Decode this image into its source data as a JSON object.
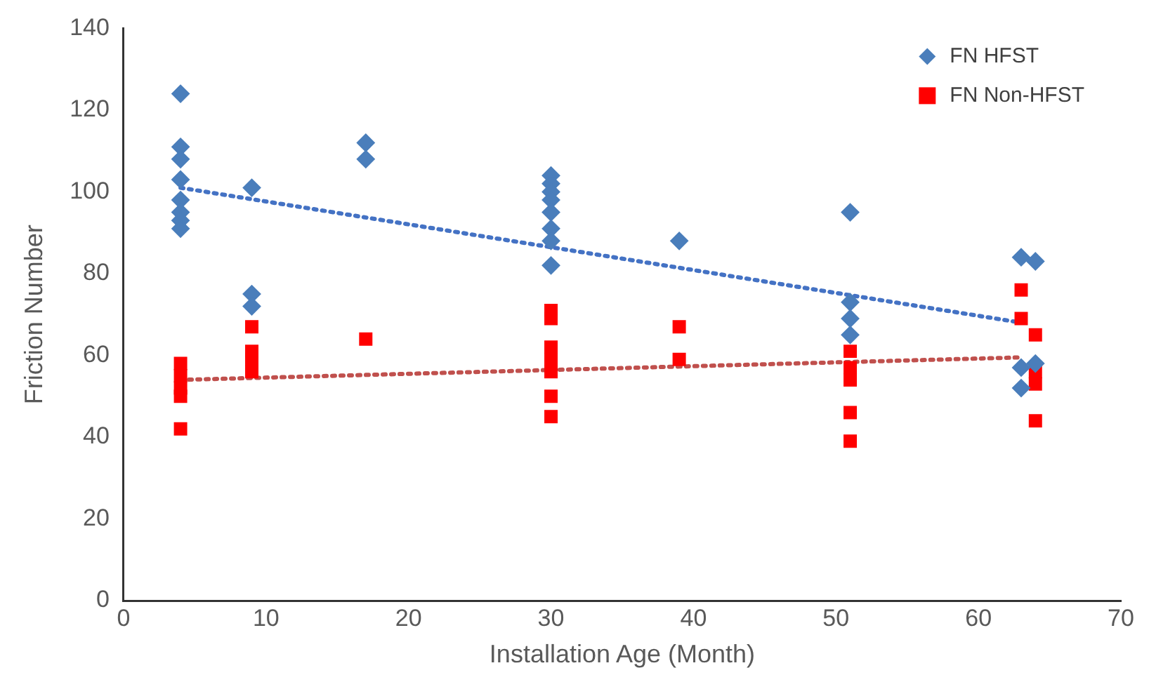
{
  "chart_data": {
    "type": "scatter",
    "xlabel": "Installation Age (Month)",
    "ylabel": "Friction Number",
    "xlim": [
      0,
      70
    ],
    "xticks": [
      0,
      10,
      20,
      30,
      40,
      50,
      60,
      70
    ],
    "ylim": [
      0,
      140
    ],
    "yticks": [
      0,
      20,
      40,
      60,
      80,
      100,
      120,
      140
    ],
    "grid": false,
    "legend": "top right",
    "series": [
      {
        "name": "FN HFST",
        "color": "#4a7ebb",
        "marker": "diamond",
        "x": [
          4,
          4,
          4,
          4,
          4,
          4,
          4,
          4,
          9,
          9,
          9,
          17,
          17,
          30,
          30,
          30,
          30,
          30,
          30,
          30,
          30,
          39,
          51,
          51,
          51,
          51,
          63,
          63,
          63,
          64,
          64
        ],
        "values": [
          124,
          111,
          108,
          103,
          98,
          95,
          93,
          91,
          101,
          75,
          72,
          112,
          108,
          104,
          102,
          100,
          98,
          95,
          91,
          88,
          82,
          88,
          95,
          73,
          69,
          65,
          84,
          57,
          52,
          83,
          58
        ]
      },
      {
        "name": "FN Non-HFST",
        "color": "#ff0000",
        "marker": "square",
        "x": [
          4,
          4,
          4,
          4,
          4,
          9,
          9,
          9,
          9,
          17,
          30,
          30,
          30,
          30,
          30,
          30,
          30,
          39,
          39,
          51,
          51,
          51,
          51,
          51,
          63,
          63,
          64,
          64,
          64,
          64
        ],
        "values": [
          58,
          55,
          52,
          50,
          42,
          67,
          61,
          59,
          56,
          64,
          71,
          69,
          62,
          59,
          56,
          50,
          45,
          67,
          59,
          61,
          57,
          54,
          46,
          39,
          76,
          69,
          65,
          56,
          53,
          44
        ]
      },
      {
        "type": "line",
        "color": "#4472c4",
        "line_style": "dotted",
        "marker": "none",
        "x": [
          4,
          63
        ],
        "values": [
          101,
          68
        ]
      },
      {
        "type": "line",
        "color": "#c0504d",
        "line_style": "dotted",
        "marker": "none",
        "x": [
          4,
          63
        ],
        "values": [
          54,
          59.5
        ]
      }
    ]
  }
}
